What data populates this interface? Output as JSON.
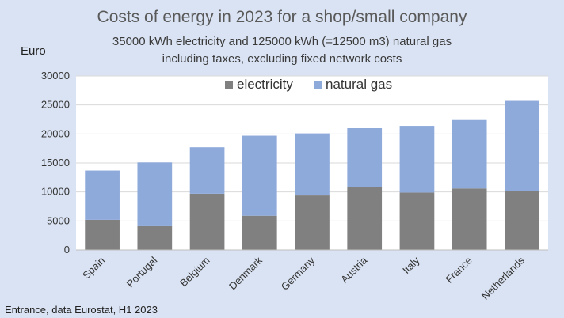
{
  "chart_data": {
    "type": "bar",
    "stacked": true,
    "title": "Costs of energy in 2023 for a shop/small company",
    "subtitle": [
      "35000 kWh electricity and 125000 kWh (=12500 m3) natural gas",
      "including taxes, excluding fixed network costs"
    ],
    "ylabel": "Euro",
    "xlabel": "",
    "ylim": [
      0,
      30000
    ],
    "yticks": [
      0,
      5000,
      10000,
      15000,
      20000,
      25000,
      30000
    ],
    "grid": true,
    "legend_position": "top",
    "categories": [
      "Spain",
      "Portugal",
      "Belgium",
      "Denmark",
      "Germany",
      "Austria",
      "Italy",
      "France",
      "Netherlands"
    ],
    "series": [
      {
        "name": "electricity",
        "color": "#808080",
        "values": [
          5200,
          4100,
          9700,
          5900,
          9400,
          10900,
          9900,
          10600,
          10100
        ]
      },
      {
        "name": "natural gas",
        "color": "#8eaadb",
        "values": [
          8500,
          11000,
          8000,
          13800,
          10700,
          10100,
          11500,
          11800,
          15600
        ]
      }
    ],
    "source": "Entrance, data Eurostat, H1 2023"
  }
}
